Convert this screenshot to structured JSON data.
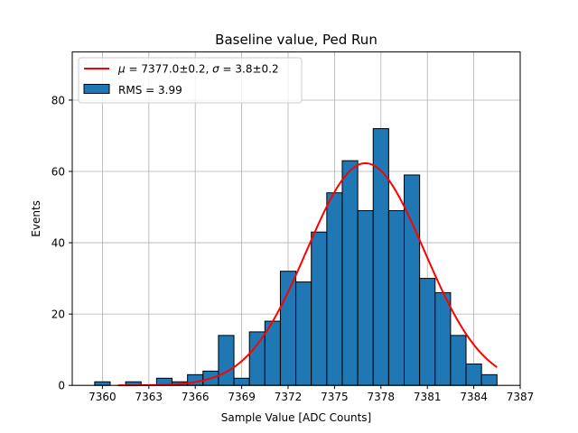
{
  "chart_data": {
    "type": "bar",
    "title": "Baseline value, Ped Run",
    "xlabel": "Sample Value [ADC Counts]",
    "ylabel": "Events",
    "xlim": [
      7358.05,
      7387.0
    ],
    "ylim": [
      0,
      93.5
    ],
    "xticks": [
      7360,
      7363,
      7366,
      7369,
      7372,
      7375,
      7378,
      7381,
      7384,
      7387
    ],
    "yticks": [
      0,
      20,
      40,
      60,
      80
    ],
    "grid": true,
    "legend_position": "top-left",
    "bin_width": 1.0,
    "bins": [
      {
        "x0": 7359.5,
        "x1": 7360.5,
        "count": 1
      },
      {
        "x0": 7360.5,
        "x1": 7361.5,
        "count": 0
      },
      {
        "x0": 7361.5,
        "x1": 7362.5,
        "count": 1
      },
      {
        "x0": 7362.5,
        "x1": 7363.5,
        "count": 0
      },
      {
        "x0": 7363.5,
        "x1": 7364.5,
        "count": 2
      },
      {
        "x0": 7364.5,
        "x1": 7365.5,
        "count": 1
      },
      {
        "x0": 7365.5,
        "x1": 7366.5,
        "count": 3
      },
      {
        "x0": 7366.5,
        "x1": 7367.5,
        "count": 4
      },
      {
        "x0": 7367.5,
        "x1": 7368.5,
        "count": 14
      },
      {
        "x0": 7368.5,
        "x1": 7369.5,
        "count": 2
      },
      {
        "x0": 7369.5,
        "x1": 7370.5,
        "count": 15
      },
      {
        "x0": 7370.5,
        "x1": 7371.5,
        "count": 18
      },
      {
        "x0": 7371.5,
        "x1": 7372.5,
        "count": 32
      },
      {
        "x0": 7372.5,
        "x1": 7373.5,
        "count": 29
      },
      {
        "x0": 7373.5,
        "x1": 7374.5,
        "count": 43
      },
      {
        "x0": 7374.5,
        "x1": 7375.5,
        "count": 54
      },
      {
        "x0": 7375.5,
        "x1": 7376.5,
        "count": 63
      },
      {
        "x0": 7376.5,
        "x1": 7377.5,
        "count": 49
      },
      {
        "x0": 7377.5,
        "x1": 7378.5,
        "count": 72
      },
      {
        "x0": 7378.5,
        "x1": 7379.5,
        "count": 49
      },
      {
        "x0": 7379.5,
        "x1": 7380.5,
        "count": 59
      },
      {
        "x0": 7380.5,
        "x1": 7381.5,
        "count": 30
      },
      {
        "x0": 7381.5,
        "x1": 7382.5,
        "count": 26
      },
      {
        "x0": 7382.5,
        "x1": 7383.5,
        "count": 14
      },
      {
        "x0": 7383.5,
        "x1": 7384.5,
        "count": 6
      },
      {
        "x0": 7384.5,
        "x1": 7385.5,
        "count": 3
      }
    ],
    "fit": {
      "label": "μ = 7377.0±0.2, σ = 3.8±0.2",
      "label_mu": "μ",
      "label_mu_value": " = 7377.0±0.2, ",
      "label_sigma": "σ",
      "label_sigma_value": " = 3.8±0.2",
      "amplitude": 62.3,
      "mu": 7377.0,
      "sigma": 3.8,
      "x_range": [
        7361.0,
        7385.5
      ]
    },
    "hist_legend_label": "RMS = 3.99",
    "colors": {
      "bar_fill": "#1f77b4",
      "bar_edge": "#000000",
      "fit_line": "#ff0000",
      "grid": "#b0b0b0",
      "axes": "#000000"
    }
  }
}
